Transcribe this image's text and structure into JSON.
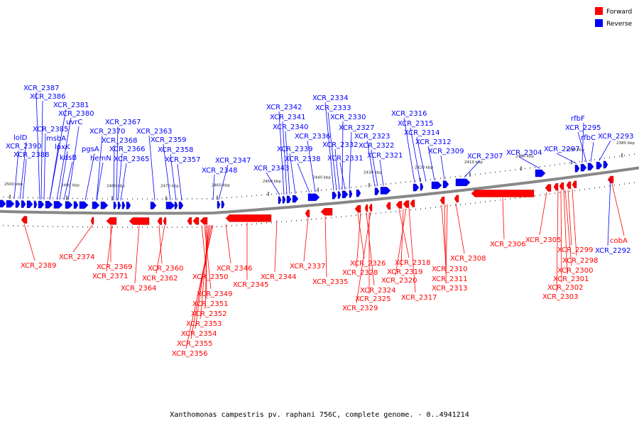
{
  "legend": {
    "forward": "Forward",
    "reverse": "Reverse",
    "forward_color": "#ff0000",
    "reverse_color": "#0000ff"
  },
  "caption": "Xanthomonas campestris pv. raphani 756C, complete genome. - 0..4941214",
  "ticks": [
    "2500 kbp",
    "2490 kbp",
    "2480 kbp",
    "2470 kbp",
    "2460 kbp",
    "2450 kbp",
    "2440 kbp",
    "2430 kbp",
    "2420 kbp",
    "2410 kbp",
    "2400 kbp",
    "2390 kbp",
    "2380 kbp"
  ],
  "reverse_labels": [
    "XCR_2387",
    "XCR_2386",
    "XCR_2381",
    "XCR_2380",
    "uvrC",
    "XCR_2385",
    "msbA",
    "lolD",
    "lpxK",
    "XCR_2390",
    "kdsB",
    "XCR_2388",
    "XCR_2370",
    "XCR_2367",
    "pgsA",
    "XCR_2368",
    "hemN",
    "XCR_2366",
    "XCR_2363",
    "XCR_2365",
    "XCR_2359",
    "XCR_2358",
    "XCR_2357",
    "XCR_2347",
    "XCR_2348",
    "XCR_2343",
    "XCR_2342",
    "XCR_2341",
    "XCR_2340",
    "XCR_2339",
    "XCR_2338",
    "XCR_2336",
    "XCR_2334",
    "XCR_2333",
    "XCR_2330",
    "XCR_2327",
    "XCR_2332",
    "XCR_2331",
    "XCR_2323",
    "XCR_2322",
    "XCR_2321",
    "XCR_2316",
    "XCR_2315",
    "XCR_2314",
    "XCR_2312",
    "XCR_2309",
    "XCR_2307",
    "XCR_2304",
    "XCR_2297",
    "rfbF",
    "XCR_2295",
    "rfbC",
    "XCR_2293",
    "XCR_2292"
  ],
  "forward_labels": [
    "XCR_2389",
    "XCR_2374",
    "XCR_2369",
    "XCR_2371",
    "XCR_2364",
    "XCR_2360",
    "XCR_2362",
    "XCR_2350",
    "XCR_2349",
    "XCR_2351",
    "XCR_2352",
    "XCR_2353",
    "XCR_2354",
    "XCR_2355",
    "XCR_2356",
    "XCR_2346",
    "XCR_2345",
    "XCR_2344",
    "XCR_2337",
    "XCR_2335",
    "XCR_2326",
    "XCR_2328",
    "XCR_2324",
    "XCR_2325",
    "XCR_2329",
    "XCR_2318",
    "XCR_2319",
    "XCR_2320",
    "XCR_2317",
    "XCR_2308",
    "XCR_2310",
    "XCR_2311",
    "XCR_2313",
    "XCR_2306",
    "XCR_2305",
    "XCR_2299",
    "XCR_2298",
    "XCR_2300",
    "XCR_2301",
    "XCR_2302",
    "XCR_2303",
    "cobA"
  ]
}
